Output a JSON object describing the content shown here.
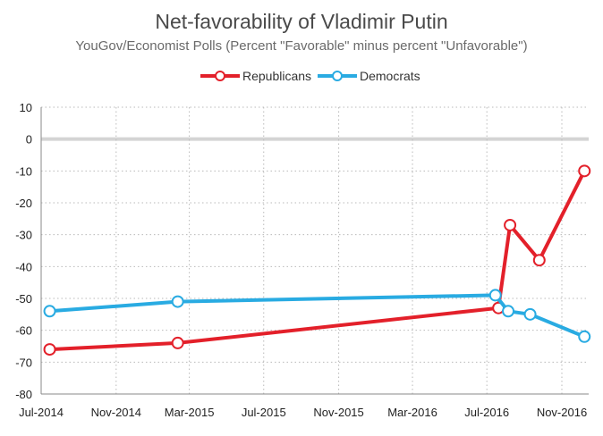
{
  "chart_data": {
    "type": "line",
    "title": "Net-favorability of Vladimir Putin",
    "subtitle": "YouGov/Economist Polls (Percent \"Favorable\" minus percent \"Unfavorable\")",
    "xlabel": "",
    "ylabel": "",
    "x_ticks": [
      "Jul-2014",
      "Nov-2014",
      "Mar-2015",
      "Jul-2015",
      "Nov-2015",
      "Mar-2016",
      "Jul-2016",
      "Nov-2016"
    ],
    "y_ticks": [
      "10",
      "0",
      "-10",
      "-20",
      "-30",
      "-40",
      "-50",
      "-60",
      "-70",
      "-80"
    ],
    "ylim": [
      -80,
      10
    ],
    "xlim": [
      "2014-07-01",
      "2016-12-15"
    ],
    "grid": true,
    "legend_position": "top-center",
    "series": [
      {
        "name": "Republicans",
        "color": "#e3202a",
        "points": [
          {
            "x": "2014-07-15",
            "y": -66
          },
          {
            "x": "2015-02-10",
            "y": -64
          },
          {
            "x": "2016-07-20",
            "y": -53
          },
          {
            "x": "2016-08-08",
            "y": -27
          },
          {
            "x": "2016-09-25",
            "y": -38
          },
          {
            "x": "2016-12-08",
            "y": -10
          }
        ]
      },
      {
        "name": "Democrats",
        "color": "#29abe2",
        "points": [
          {
            "x": "2014-07-15",
            "y": -54
          },
          {
            "x": "2015-02-10",
            "y": -51
          },
          {
            "x": "2016-07-15",
            "y": -49
          },
          {
            "x": "2016-08-05",
            "y": -54
          },
          {
            "x": "2016-09-10",
            "y": -55
          },
          {
            "x": "2016-12-08",
            "y": -62
          }
        ]
      }
    ]
  }
}
